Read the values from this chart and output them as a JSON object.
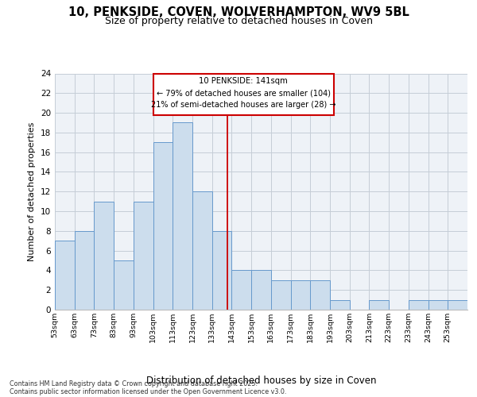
{
  "title_line1": "10, PENKSIDE, COVEN, WOLVERHAMPTON, WV9 5BL",
  "title_line2": "Size of property relative to detached houses in Coven",
  "xlabel": "Distribution of detached houses by size in Coven",
  "ylabel": "Number of detached properties",
  "bin_edges": [
    53,
    63,
    73,
    83,
    93,
    103,
    113,
    123,
    133,
    143,
    153,
    163,
    173,
    183,
    193,
    203,
    213,
    223,
    233,
    243,
    253,
    263
  ],
  "counts": [
    7,
    8,
    11,
    5,
    11,
    17,
    19,
    12,
    8,
    4,
    4,
    3,
    3,
    3,
    1,
    0,
    1,
    0,
    1,
    1,
    1
  ],
  "bar_color": "#ccdded",
  "bar_edge_color": "#6699cc",
  "grid_color": "#c5cdd6",
  "bg_color": "#eef2f7",
  "red_line_x": 141,
  "annotation_text_line1": "10 PENKSIDE: 141sqm",
  "annotation_text_line2": "← 79% of detached houses are smaller (104)",
  "annotation_text_line3": "21% of semi-detached houses are larger (28) →",
  "annotation_box_facecolor": "#ffffff",
  "annotation_box_edgecolor": "#cc0000",
  "footnote_line1": "Contains HM Land Registry data © Crown copyright and database right 2025.",
  "footnote_line2": "Contains public sector information licensed under the Open Government Licence v3.0.",
  "ylim": [
    0,
    24
  ],
  "yticks": [
    0,
    2,
    4,
    6,
    8,
    10,
    12,
    14,
    16,
    18,
    20,
    22,
    24
  ],
  "tick_labels": [
    "53sqm",
    "63sqm",
    "73sqm",
    "83sqm",
    "93sqm",
    "103sqm",
    "113sqm",
    "123sqm",
    "133sqm",
    "143sqm",
    "153sqm",
    "163sqm",
    "173sqm",
    "183sqm",
    "193sqm",
    "203sqm",
    "213sqm",
    "223sqm",
    "233sqm",
    "243sqm",
    "253sqm"
  ]
}
